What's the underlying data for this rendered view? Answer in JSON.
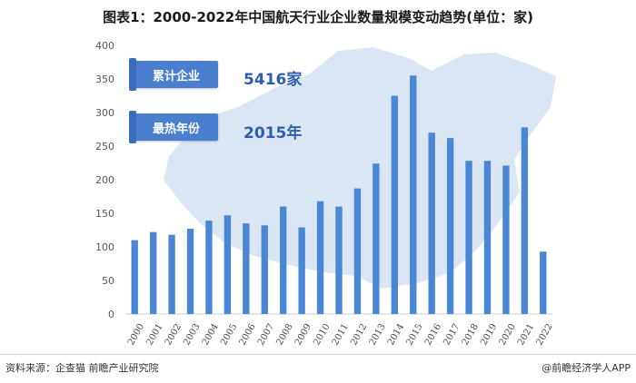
{
  "title": "图表1：2000-2022年中国航天行业企业数量规模变动趋势(单位：家)",
  "callouts": [
    {
      "label": "累计企业",
      "value": "5416家"
    },
    {
      "label": "最热年份",
      "value": "2015年"
    }
  ],
  "watermark": "前瞻产业研究院",
  "footer": {
    "source": "资料来源：企查猫 前瞻产业研究院",
    "brand": "@前瞻经济学人APP"
  },
  "colors": {
    "bar": "#4a86d6",
    "callout": "#4a7fd0",
    "map": "#dbe6f4"
  },
  "chart_data": {
    "type": "bar",
    "categories": [
      "2000",
      "2001",
      "2002",
      "2003",
      "2004",
      "2005",
      "2006",
      "2007",
      "2008",
      "2009",
      "2010",
      "2011",
      "2012",
      "2013",
      "2014",
      "2015",
      "2016",
      "2017",
      "2018",
      "2019",
      "2020",
      "2021",
      "2022"
    ],
    "values": [
      110,
      122,
      118,
      127,
      139,
      147,
      135,
      132,
      160,
      129,
      168,
      160,
      187,
      224,
      325,
      355,
      270,
      262,
      228,
      228,
      221,
      278,
      93
    ],
    "ylim": [
      0,
      400
    ],
    "yticks": [
      0,
      50,
      100,
      150,
      200,
      250,
      300,
      350,
      400
    ],
    "grid": false
  }
}
